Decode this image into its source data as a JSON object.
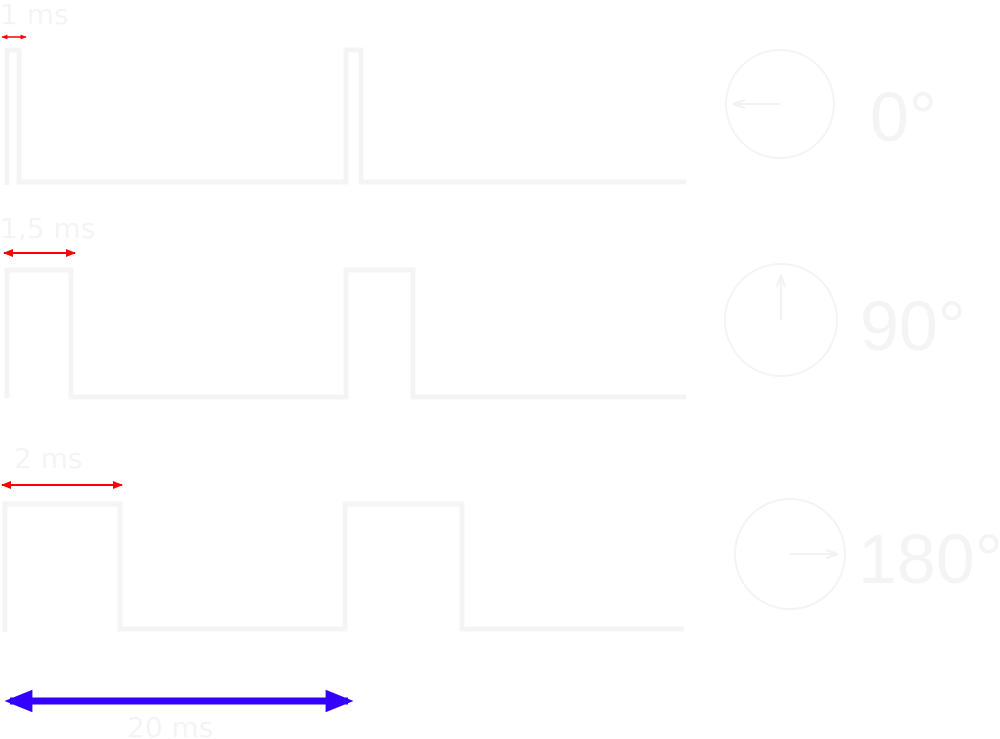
{
  "pulses": [
    {
      "width_label": "1 ms",
      "angle_label": "0°",
      "pulse_ms": 1,
      "period_ms": 20,
      "angle_deg": 0
    },
    {
      "width_label": "1,5 ms",
      "angle_label": "90°",
      "pulse_ms": 1.5,
      "period_ms": 20,
      "angle_deg": 90
    },
    {
      "width_label": "2 ms",
      "angle_label": "180°",
      "pulse_ms": 2,
      "period_ms": 20,
      "angle_deg": 180
    }
  ],
  "period": {
    "label": "20 ms",
    "value_ms": 20
  },
  "colors": {
    "pulse_width_arrow": "#ff0000",
    "period_arrow": "#3300ff",
    "waveform": "#f4f4f4",
    "text": "#f4f4f4"
  }
}
